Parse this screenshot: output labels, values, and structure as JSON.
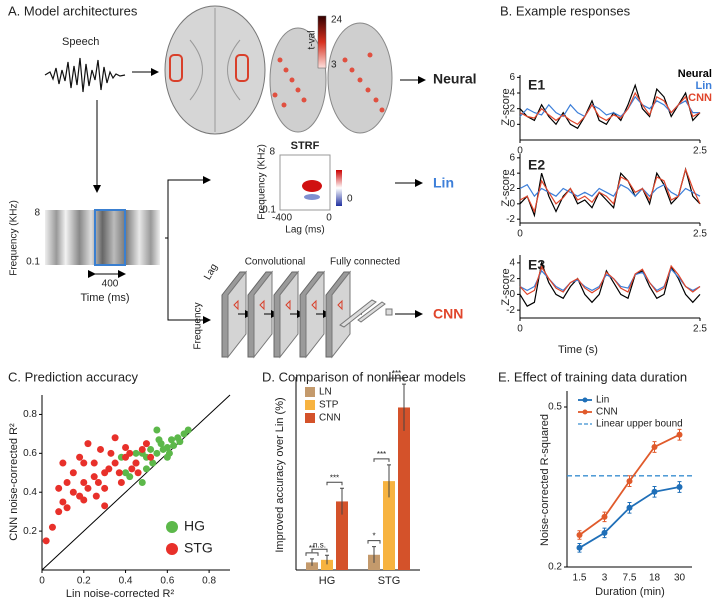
{
  "diagram": {
    "title": "A. Model architectures",
    "speech": "Speech",
    "tval": "t-val",
    "tval_max": "24",
    "tval_min": "3",
    "neural": "Neural",
    "strf": {
      "title": "STRF",
      "f_max": "8",
      "f_label": "Frequency (KHz)",
      "f_min": "0.1",
      "lag_min": "-400",
      "lag_max": "0",
      "lag_label": "Lag (ms)",
      "cbar_zero": "0"
    },
    "lin": "Lin",
    "spectrogram": {
      "f_max": "8",
      "f_label": "Frequency (KHz)",
      "f_min": "0.1",
      "window": "400",
      "time_label": "Time (ms)"
    },
    "cnn": {
      "lag": "Lag",
      "frequency": "Frequency",
      "conv": "Convolutional",
      "fc": "Fully connected",
      "label": "CNN"
    }
  },
  "chart_data": [
    {
      "type": "line",
      "title": "B. Example responses",
      "label": "E1",
      "ylabel": "Z-score",
      "x": [
        0,
        0.1,
        0.2,
        0.3,
        0.4,
        0.5,
        0.6,
        0.7,
        0.8,
        0.9,
        1,
        1.1,
        1.2,
        1.3,
        1.4,
        1.5,
        1.6,
        1.7,
        1.8,
        1.9,
        2,
        2.1,
        2.2,
        2.3,
        2.4,
        2.5
      ],
      "xlim": [
        0,
        2.5
      ],
      "xticks": [
        0,
        2.5
      ],
      "ylim": [
        -2,
        6.3
      ],
      "yticks": [
        0,
        2,
        4,
        6
      ],
      "series": [
        {
          "name": "Neural",
          "color": "#000000",
          "values": [
            2,
            1,
            0.5,
            2.5,
            1,
            0,
            1.5,
            0,
            -0.5,
            1,
            3,
            0.5,
            0,
            1.5,
            0.5,
            2.5,
            5,
            2,
            1,
            4.5,
            3.5,
            1,
            2.5,
            4,
            0.5,
            1.5
          ]
        },
        {
          "name": "Lin",
          "color": "#3d7fd9",
          "values": [
            1,
            2,
            1.5,
            1.2,
            2.5,
            1.5,
            1,
            2.5,
            1.5,
            1,
            2.5,
            2,
            1.2,
            1.5,
            1,
            2,
            3.5,
            2.5,
            2,
            3,
            2.5,
            1.5,
            2.5,
            3,
            1.5,
            1.5
          ]
        },
        {
          "name": "CNN",
          "color": "#e0452b",
          "values": [
            1.5,
            1,
            0.8,
            2,
            1.2,
            0.5,
            1.2,
            0.5,
            0,
            1,
            2.5,
            1,
            0.5,
            1.2,
            0.8,
            2,
            4,
            2.5,
            1.2,
            3.5,
            3,
            1.5,
            2.5,
            3.5,
            1,
            1.5
          ]
        }
      ]
    },
    {
      "type": "line",
      "label": "E2",
      "ylabel": "Z-score",
      "x": [
        0,
        0.1,
        0.2,
        0.3,
        0.4,
        0.5,
        0.6,
        0.7,
        0.8,
        0.9,
        1,
        1.1,
        1.2,
        1.3,
        1.4,
        1.5,
        1.6,
        1.7,
        1.8,
        1.9,
        2,
        2.1,
        2.2,
        2.3,
        2.4,
        2.5
      ],
      "xlim": [
        0,
        2.5
      ],
      "xticks": [
        0,
        2.5
      ],
      "ylim": [
        -2.5,
        6.5
      ],
      "yticks": [
        -2,
        0,
        2,
        4,
        6
      ],
      "series": [
        {
          "color": "#000000",
          "values": [
            0,
            1,
            -1.5,
            4,
            1,
            -1,
            1,
            2,
            0,
            0.5,
            -0.5,
            1.5,
            0.5,
            -0.5,
            4,
            3,
            1,
            2,
            0,
            4,
            2.5,
            0,
            1,
            4.5,
            1,
            0
          ]
        },
        {
          "color": "#3d7fd9",
          "values": [
            2,
            2.5,
            1,
            2,
            1.5,
            1,
            2,
            1.5,
            1,
            1.5,
            1,
            2,
            1.5,
            1,
            2.5,
            2,
            1,
            2,
            1,
            2,
            2.5,
            1.5,
            1,
            2,
            1.5,
            1
          ]
        },
        {
          "color": "#e0452b",
          "values": [
            0.5,
            1,
            -1,
            3,
            1.5,
            0,
            0.8,
            2,
            0.5,
            1,
            0.2,
            1.5,
            1,
            0,
            3.5,
            3,
            1.5,
            2,
            0.5,
            3.5,
            3,
            0.5,
            1,
            4.5,
            2,
            0
          ]
        }
      ]
    },
    {
      "type": "line",
      "label": "E3",
      "ylabel": "Z-score",
      "xlabel": "Time (s)",
      "x": [
        0,
        0.1,
        0.2,
        0.3,
        0.4,
        0.5,
        0.6,
        0.7,
        0.8,
        0.9,
        1,
        1.1,
        1.2,
        1.3,
        1.4,
        1.5,
        1.6,
        1.7,
        1.8,
        1.9,
        2,
        2.1,
        2.2,
        2.3,
        2.4,
        2.5
      ],
      "xlim": [
        0,
        2.5
      ],
      "xticks": [
        0,
        2.5
      ],
      "ylim": [
        -3,
        5
      ],
      "yticks": [
        -2,
        0,
        2,
        4
      ],
      "series": [
        {
          "color": "#000000",
          "values": [
            0,
            -1.5,
            -1,
            4,
            1.5,
            0,
            -0.5,
            1,
            2,
            0,
            -1,
            0,
            3,
            1.5,
            0,
            -0.5,
            2.5,
            3,
            1,
            -0.5,
            0,
            3.5,
            2,
            0,
            -1,
            0
          ]
        },
        {
          "color": "#3d7fd9",
          "values": [
            1,
            0.5,
            1,
            3,
            2,
            1,
            0.5,
            1.5,
            1.8,
            1,
            0.5,
            1,
            2.5,
            2,
            1,
            0.8,
            2.5,
            2.8,
            1.5,
            0.5,
            1,
            3.2,
            2.2,
            1,
            0.5,
            1
          ]
        },
        {
          "color": "#e0452b",
          "values": [
            1,
            0,
            0.5,
            3.5,
            2,
            0.8,
            0.3,
            1.5,
            2,
            0.8,
            0.2,
            0.8,
            2.8,
            2,
            0.8,
            0.3,
            2.6,
            3.2,
            1.5,
            0.3,
            0.8,
            3.6,
            2.5,
            1,
            0.3,
            1
          ]
        }
      ]
    },
    {
      "type": "scatter",
      "title": "C. Prediction accuracy",
      "xlabel": "Lin noise-corrected R²",
      "ylabel": "CNN noise-corrected R²",
      "xlim": [
        0,
        0.9
      ],
      "ylim": [
        0,
        0.9
      ],
      "xticks": [
        0,
        0.2,
        0.4,
        0.6,
        0.8
      ],
      "yticks": [
        0.2,
        0.4,
        0.6,
        0.8
      ],
      "series": [
        {
          "name": "HG",
          "color": "#5cb84a",
          "x": [
            0.4,
            0.45,
            0.48,
            0.5,
            0.52,
            0.55,
            0.57,
            0.6,
            0.62,
            0.65,
            0.68,
            0.7,
            0.5,
            0.53,
            0.58,
            0.6,
            0.63,
            0.45,
            0.42,
            0.55,
            0.48,
            0.66,
            0.61,
            0.38,
            0.56
          ],
          "y": [
            0.5,
            0.55,
            0.6,
            0.58,
            0.62,
            0.6,
            0.65,
            0.63,
            0.67,
            0.68,
            0.7,
            0.72,
            0.52,
            0.55,
            0.62,
            0.58,
            0.64,
            0.6,
            0.48,
            0.72,
            0.45,
            0.66,
            0.6,
            0.58,
            0.67
          ]
        },
        {
          "name": "STG",
          "color": "#e8302a",
          "x": [
            0.02,
            0.05,
            0.08,
            0.1,
            0.12,
            0.15,
            0.18,
            0.2,
            0.22,
            0.25,
            0.27,
            0.3,
            0.32,
            0.35,
            0.37,
            0.4,
            0.42,
            0.45,
            0.48,
            0.5,
            0.15,
            0.2,
            0.25,
            0.3,
            0.12,
            0.28,
            0.38,
            0.22,
            0.33,
            0.08,
            0.18,
            0.43,
            0.35,
            0.26,
            0.52,
            0.1,
            0.3,
            0.4,
            0.46,
            0.2
          ],
          "y": [
            0.15,
            0.22,
            0.3,
            0.35,
            0.32,
            0.4,
            0.38,
            0.45,
            0.42,
            0.48,
            0.45,
            0.5,
            0.52,
            0.55,
            0.5,
            0.58,
            0.6,
            0.55,
            0.62,
            0.65,
            0.5,
            0.36,
            0.55,
            0.42,
            0.45,
            0.62,
            0.45,
            0.65,
            0.6,
            0.42,
            0.58,
            0.52,
            0.68,
            0.38,
            0.58,
            0.55,
            0.33,
            0.63,
            0.5,
            0.55
          ]
        }
      ]
    },
    {
      "type": "bar",
      "title": "D. Comparison of nonlinear models",
      "ylabel": "Improved accuracy over Lin (%)",
      "categories": [
        "HG",
        "STG"
      ],
      "ylim": [
        0,
        38
      ],
      "series": [
        {
          "name": "LN",
          "color": "#c49a6c",
          "values": [
            1.5,
            3
          ],
          "errors": [
            0.7,
            1.6
          ]
        },
        {
          "name": "STP",
          "color": "#f7b340",
          "values": [
            2,
            17.5
          ],
          "errors": [
            0.9,
            3.2
          ]
        },
        {
          "name": "CNN",
          "color": "#d4522a",
          "values": [
            13.5,
            32
          ],
          "errors": [
            2.6,
            4.6
          ]
        }
      ],
      "significance": [
        [
          "**",
          "n.s.",
          "***"
        ],
        [
          "*",
          "***",
          "***"
        ]
      ]
    },
    {
      "type": "line",
      "title": "E. Effect of training data duration",
      "xlabel": "Duration (min)",
      "ylabel": "Noise-corrected R-squared",
      "categories": [
        "1.5",
        "3",
        "7.5",
        "18",
        "30"
      ],
      "ylim": [
        0.2,
        0.53
      ],
      "yticks": [
        0.2,
        0.5
      ],
      "series": [
        {
          "name": "Lin",
          "color": "#1f6fb8",
          "values": [
            0.236,
            0.264,
            0.311,
            0.341,
            0.35
          ],
          "errors": [
            0.008,
            0.009,
            0.01,
            0.01,
            0.01
          ]
        },
        {
          "name": "CNN",
          "color": "#e05a2b",
          "values": [
            0.26,
            0.294,
            0.361,
            0.425,
            0.448
          ],
          "errors": [
            0.008,
            0.009,
            0.01,
            0.01,
            0.01
          ]
        }
      ],
      "reference": {
        "name": "Linear upper bound",
        "value": 0.371,
        "color": "#3a8fd0"
      }
    }
  ]
}
